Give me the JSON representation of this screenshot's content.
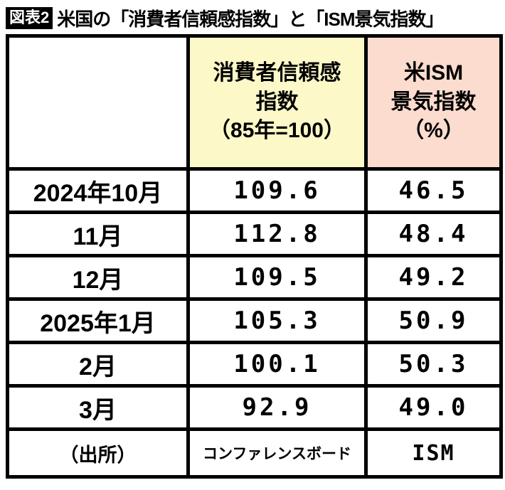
{
  "figure": {
    "badge": "図表2",
    "title": "米国の「消費者信頼感指数」と「ISM景気指数」"
  },
  "header": {
    "col1": "",
    "col2_lines": [
      "消費者信頼感",
      "指数",
      "（85年=100）"
    ],
    "col3_lines": [
      "米ISM",
      "景気指数",
      "（%）"
    ]
  },
  "chart_data": {
    "type": "table",
    "title": "米国の「消費者信頼感指数」と「ISM景気指数」",
    "columns": [
      "",
      "消費者信頼感指数（85年=100）",
      "米ISM景気指数（%）"
    ],
    "categories": [
      "2024年10月",
      "11月",
      "12月",
      "2025年1月",
      "2月",
      "3月"
    ],
    "series": [
      {
        "name": "消費者信頼感指数（85年=100）",
        "values": [
          109.6,
          112.8,
          109.5,
          105.3,
          100.1,
          92.9
        ]
      },
      {
        "name": "米ISM景気指数（%）",
        "values": [
          46.5,
          48.4,
          49.2,
          50.9,
          50.3,
          49.0
        ]
      }
    ],
    "rows": [
      [
        "2024年10月",
        "109.6",
        "46.5"
      ],
      [
        "11月",
        "112.8",
        "48.4"
      ],
      [
        "12月",
        "109.5",
        "49.2"
      ],
      [
        "2025年1月",
        "105.3",
        "50.9"
      ],
      [
        "2月",
        "100.1",
        "50.3"
      ],
      [
        "3月",
        "92.9",
        "49.0"
      ]
    ],
    "source_row": [
      "（出所）",
      "コンファレンスボード",
      "ISM"
    ]
  },
  "colors": {
    "consumer_header_bg": "#fcf8c8",
    "ism_header_bg": "#fbdcce",
    "border": "#000000",
    "badge_bg": "#000000",
    "badge_text": "#ffffff"
  }
}
